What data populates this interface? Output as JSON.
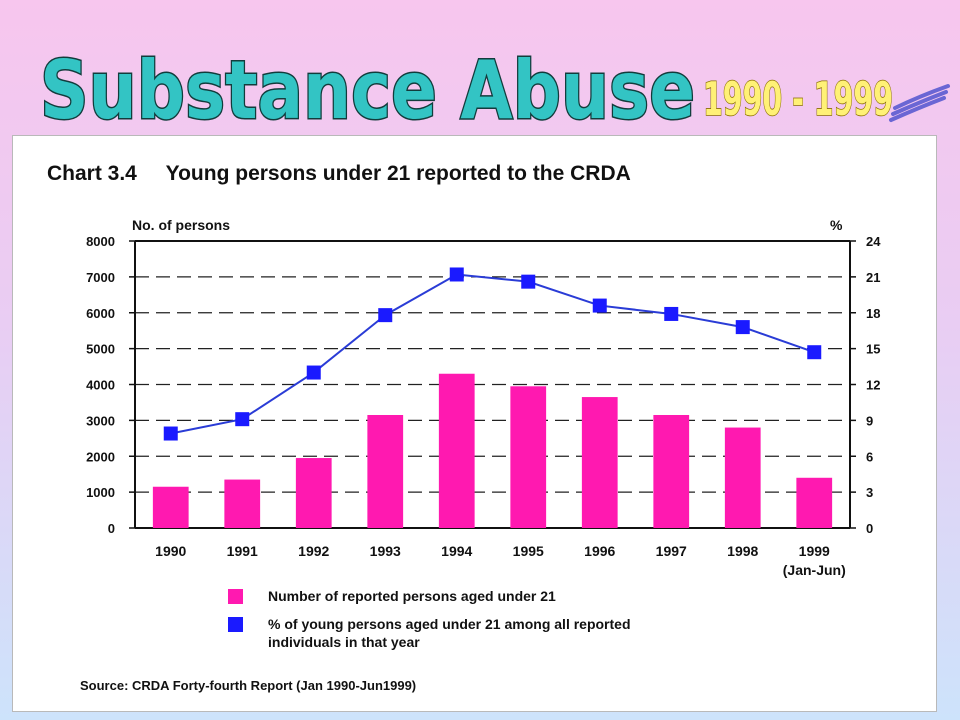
{
  "header": {
    "title": "Substance Abuse",
    "period": "1990 - 1999",
    "colors": {
      "title_fill": "#33c4c4",
      "title_outline": "#123c3c",
      "period_fill": "#fff176",
      "period_outline": "#8a6d00",
      "swoosh": "#6a66d4"
    }
  },
  "chart_data": {
    "type": "bar+line",
    "title": "Chart 3.4     Young persons under 21 reported to the CRDA",
    "ylabel_left": "No. of persons",
    "ylabel_right": "%",
    "categories": [
      "1990",
      "1991",
      "1992",
      "1993",
      "1994",
      "1995",
      "1996",
      "1997",
      "1998",
      "1999"
    ],
    "category_sublabels": [
      "",
      "",
      "",
      "",
      "",
      "",
      "",
      "",
      "",
      "(Jan-Jun)"
    ],
    "left_ticks": [
      "0",
      "1000",
      "2000",
      "3000",
      "4000",
      "5000",
      "6000",
      "7000",
      "8000"
    ],
    "right_ticks": [
      "0",
      "3",
      "6",
      "9",
      "12",
      "15",
      "18",
      "21",
      "24"
    ],
    "ylim_left": [
      0,
      8000
    ],
    "ylim_right": [
      0,
      24
    ],
    "grid": "dashed horizontal",
    "legend_position": "bottom",
    "series": [
      {
        "name": "Number of reported persons aged under 21",
        "axis": "left",
        "mark": "bar",
        "color": "#ff19b0",
        "values": [
          1150,
          1350,
          1950,
          3150,
          4300,
          3950,
          3650,
          3150,
          2800,
          1400
        ]
      },
      {
        "name": "% of young persons aged under 21 among all reported individuals in that year",
        "axis": "right",
        "mark": "line",
        "color": "#2a3cd6",
        "marker_color": "#1a1aff",
        "values": [
          7.9,
          9.1,
          13.0,
          17.8,
          21.2,
          20.6,
          18.6,
          17.9,
          16.8,
          14.7
        ]
      }
    ],
    "source": "Source: CRDA Forty-fourth Report (Jan 1990-Jun1999)"
  }
}
